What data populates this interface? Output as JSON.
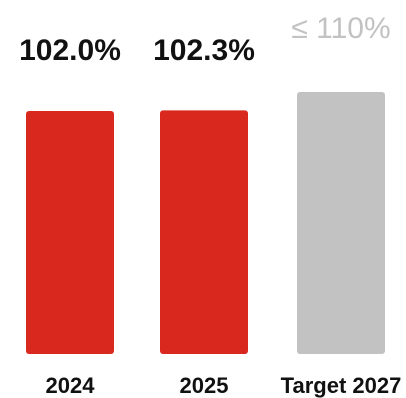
{
  "chart_data": {
    "type": "bar",
    "categories": [
      "2024",
      "2025",
      "Target 2027"
    ],
    "values": [
      102.0,
      102.3,
      110
    ],
    "value_labels": [
      "102.0%",
      "102.3%",
      "≤ 110%"
    ],
    "colors": [
      "#d9281e",
      "#d9281e",
      "#c2c2c2"
    ],
    "label_colors": [
      "#111111",
      "#111111",
      "#c2c2c2"
    ],
    "ylim": [
      0,
      110
    ],
    "grid": false,
    "title": "",
    "xlabel": "",
    "ylabel": ""
  }
}
